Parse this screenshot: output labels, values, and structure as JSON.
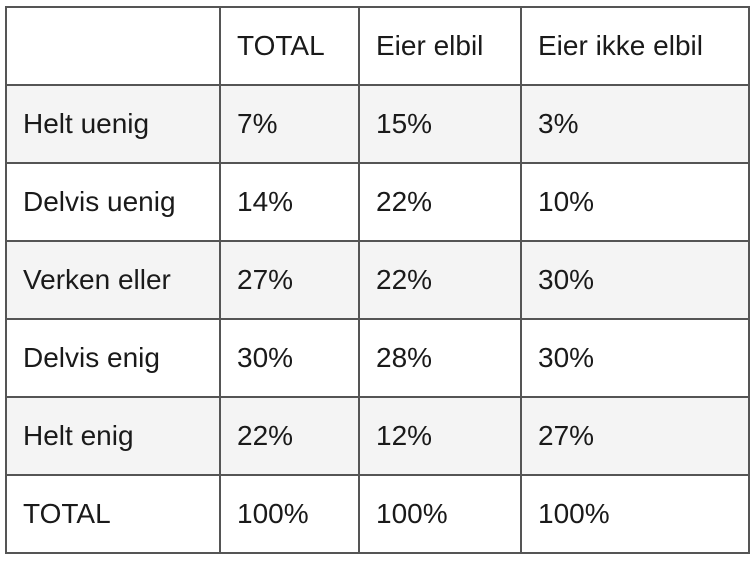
{
  "table": {
    "header": [
      "",
      "TOTAL",
      "Eier elbil",
      "Eier ikke elbil"
    ],
    "rows": [
      [
        "Helt uenig",
        "7%",
        "15%",
        "3%"
      ],
      [
        "Delvis uenig",
        "14%",
        "22%",
        "10%"
      ],
      [
        "Verken eller",
        "27%",
        "22%",
        "30%"
      ],
      [
        "Delvis enig",
        "30%",
        "28%",
        "30%"
      ],
      [
        "Helt enig",
        "22%",
        "12%",
        "27%"
      ],
      [
        "TOTAL",
        "100%",
        "100%",
        "100%"
      ]
    ]
  },
  "colors": {
    "border": "#555555",
    "shaded_row": "#f4f4f4",
    "text": "#1a1a1a"
  }
}
